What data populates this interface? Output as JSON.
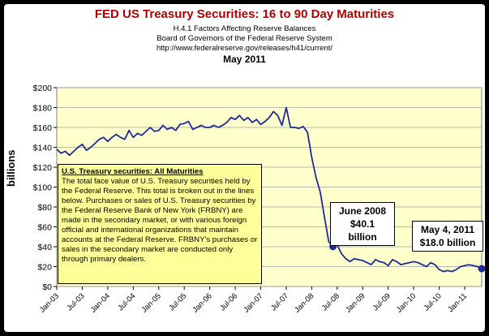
{
  "title": "FED US Treasury Securities: 16  to 90 Day Maturities",
  "subtitles": [
    "H.4.1 Factors Affecting Reserve Balances",
    "Board of Governors of the Federal Reserve System",
    "http://www.federalreserve.gov/releases/h41/current/",
    "May 2011"
  ],
  "annotations": {
    "june_line1": "June 2008",
    "june_line2": "$40.1 billion",
    "may_line1": "May 4, 2011",
    "may_line2": "$18.0 billion"
  },
  "note": {
    "heading": "U.S. Treasury securities: All Maturities",
    "body": "The total face value of U.S. Treasury securities held by the Federal Reserve.  This total is broken out in the lines below. Purchases or sales of U.S. Treasury securities by the Federal Reserve Bank of New York (FRBNY) are made in the secondary market, or with various foreign official and international organizations that maintain accounts at the Federal Reserve.  FRBNY's purchases or sales in the secondary market are conducted only through primary dealers."
  },
  "colors": {
    "line": "#1c2a9c",
    "plot_bg": "#ffffcc",
    "title": "#b00000",
    "note_bg": "#ffff99"
  },
  "chart_data": {
    "type": "line",
    "ylabel": "billions",
    "ylim": [
      0,
      200
    ],
    "xlim": [
      "2003-01",
      "2011-05"
    ],
    "y_ticks": [
      "$0",
      "$20",
      "$40",
      "$60",
      "$80",
      "$100",
      "$120",
      "$140",
      "$160",
      "$180",
      "$200"
    ],
    "x_ticks": [
      "Jan-03",
      "Jul-03",
      "Jan-04",
      "Jul-04",
      "Jan-05",
      "Jul-05",
      "Jan-06",
      "Jul-06",
      "Jan-07",
      "Jul-07",
      "Jan-08",
      "Jul-08",
      "Jan-09",
      "Jul-09",
      "Jan-10",
      "Jul-10",
      "Jan-11"
    ],
    "grid": true,
    "legend": "none",
    "series": [
      {
        "x": [
          "2003-01",
          "2003-02",
          "2003-03",
          "2003-04",
          "2003-05",
          "2003-06",
          "2003-07",
          "2003-08",
          "2003-09",
          "2003-10",
          "2003-11",
          "2003-12",
          "2004-01",
          "2004-02",
          "2004-03",
          "2004-04",
          "2004-05",
          "2004-06",
          "2004-07",
          "2004-08",
          "2004-09",
          "2004-10",
          "2004-11",
          "2004-12",
          "2005-01",
          "2005-02",
          "2005-03",
          "2005-04",
          "2005-05",
          "2005-06",
          "2005-07",
          "2005-08",
          "2005-09",
          "2005-10",
          "2005-11",
          "2005-12",
          "2006-01",
          "2006-02",
          "2006-03",
          "2006-04",
          "2006-05",
          "2006-06",
          "2006-07",
          "2006-08",
          "2006-09",
          "2006-10",
          "2006-11",
          "2006-12",
          "2007-01",
          "2007-02",
          "2007-03",
          "2007-04",
          "2007-05",
          "2007-06",
          "2007-07",
          "2007-08",
          "2007-09",
          "2007-10",
          "2007-11",
          "2007-12",
          "2008-01",
          "2008-02",
          "2008-03",
          "2008-04",
          "2008-05",
          "2008-06",
          "2008-07",
          "2008-08",
          "2008-09",
          "2008-10",
          "2008-11",
          "2008-12",
          "2009-01",
          "2009-02",
          "2009-03",
          "2009-04",
          "2009-05",
          "2009-06",
          "2009-07",
          "2009-08",
          "2009-09",
          "2009-10",
          "2009-11",
          "2009-12",
          "2010-01",
          "2010-02",
          "2010-03",
          "2010-04",
          "2010-05",
          "2010-06",
          "2010-07",
          "2010-08",
          "2010-09",
          "2010-10",
          "2010-11",
          "2010-12",
          "2011-01",
          "2011-02",
          "2011-03",
          "2011-04",
          "2011-05"
        ],
        "values": [
          138,
          134,
          136,
          132,
          136,
          140,
          143,
          137,
          140,
          144,
          148,
          150,
          146,
          150,
          153,
          150,
          148,
          157,
          150,
          154,
          152,
          156,
          160,
          156,
          157,
          162,
          158,
          160,
          157,
          163,
          164,
          166,
          158,
          160,
          162,
          160,
          160,
          162,
          160,
          162,
          165,
          170,
          168,
          172,
          167,
          170,
          165,
          168,
          163,
          166,
          170,
          176,
          172,
          162,
          180,
          160,
          160,
          159,
          161,
          155,
          130,
          110,
          95,
          70,
          45,
          40.1,
          42,
          33,
          28,
          25,
          28,
          27,
          26,
          24,
          22,
          27,
          25,
          24,
          21,
          27,
          25,
          22,
          23,
          24,
          25,
          24,
          22,
          20,
          24,
          22,
          17,
          15,
          16,
          15,
          17,
          20,
          21,
          22,
          21,
          20,
          18
        ]
      }
    ],
    "markers": [
      {
        "x": "2008-06",
        "y": 40.1
      },
      {
        "x": "2011-05",
        "y": 18.0
      }
    ]
  }
}
